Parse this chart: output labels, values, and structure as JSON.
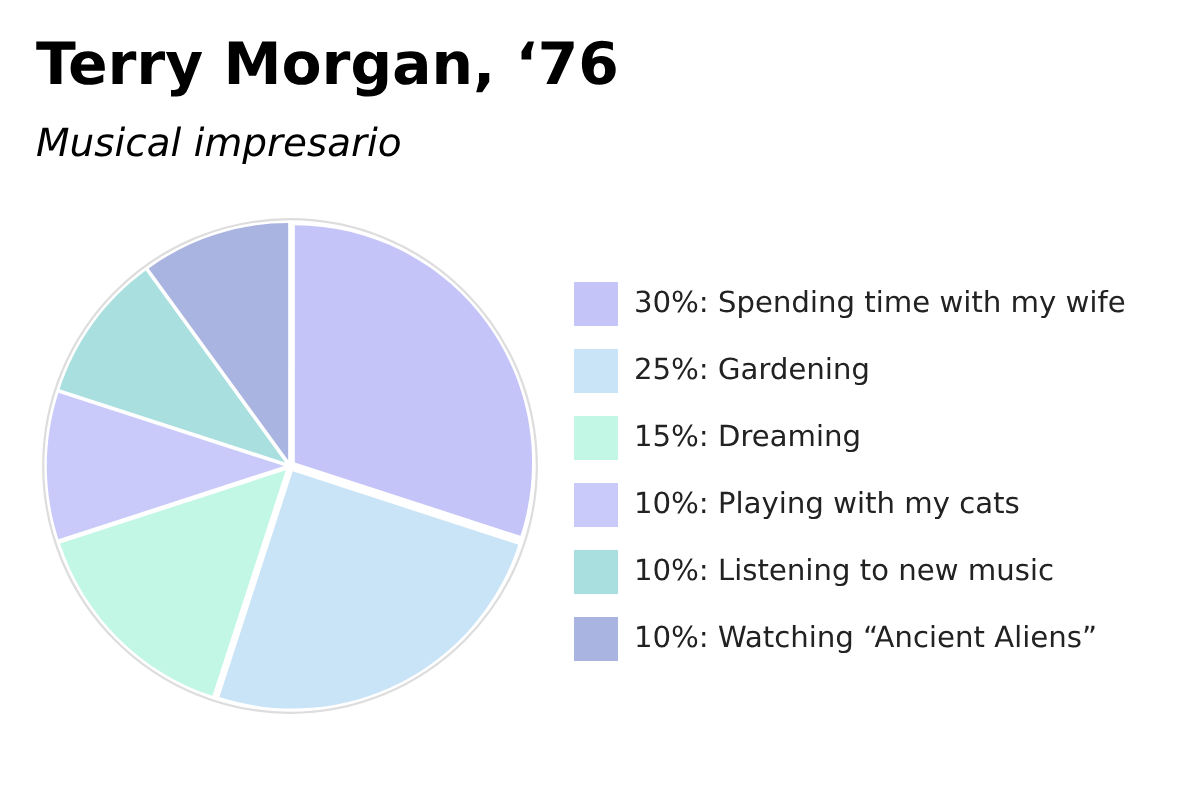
{
  "chart_data": {
    "type": "pie",
    "title": "Terry Morgan, ‘76",
    "subtitle": "Musical impresario",
    "categories": [
      "30%: Spending time with my wife",
      "25%: Gardening",
      "15%: Dreaming",
      "10%: Playing with my cats",
      "10%: Listening to new music",
      "10%: Watching “Ancient Aliens”"
    ],
    "values": [
      30,
      25,
      15,
      10,
      10,
      10
    ],
    "colors": [
      "#c4c4f8",
      "#c9e4f7",
      "#c2f7e5",
      "#cacafa",
      "#a9dfdf",
      "#aab4e0"
    ],
    "legend": "right"
  }
}
